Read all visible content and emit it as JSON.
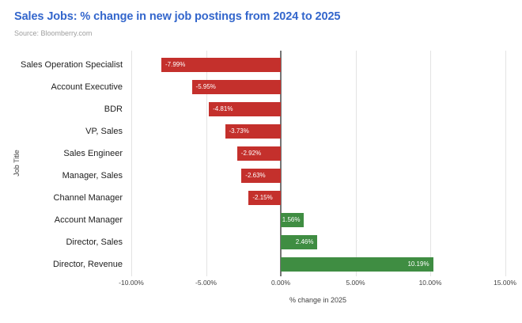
{
  "header": {
    "title": "Sales Jobs: % change in new job postings from 2024 to 2025",
    "source": "Source: Bloomberry.com"
  },
  "chart_data": {
    "type": "bar",
    "orientation": "horizontal",
    "title": "Sales Jobs: % change in new job postings from 2024 to 2025",
    "source": "Source: Bloomberry.com",
    "categories": [
      "Sales Operation Specialist",
      "Account Executive",
      "BDR",
      "VP, Sales",
      "Sales Engineer",
      "Manager, Sales",
      "Channel Manager",
      "Account Manager",
      "Director, Sales",
      "Director, Revenue"
    ],
    "values": [
      -7.99,
      -5.95,
      -4.81,
      -3.73,
      -2.92,
      -2.63,
      -2.15,
      1.56,
      2.46,
      10.19
    ],
    "value_labels": [
      "-7.99%",
      "-5.95%",
      "-4.81%",
      "-3.73%",
      "-2.92%",
      "-2.63%",
      "-2.15%",
      "1.56%",
      "2.46%",
      "10.19%"
    ],
    "xlabel": "% change in 2025",
    "ylabel": "Job Title",
    "x_ticks": [
      -10,
      -5,
      0,
      5,
      10,
      15
    ],
    "x_tick_labels": [
      "-10.00%",
      "-5.00%",
      "0.00%",
      "5.00%",
      "10.00%",
      "15.00%"
    ],
    "xlim": [
      -10.2,
      15.9
    ],
    "grid": true,
    "legend": "none",
    "colors": {
      "negative_bar": "#C4302C",
      "positive_bar": "#3F8D42",
      "grid_line": "#E3E3E3",
      "zero_line": "#757575",
      "title": "#3366CC",
      "source_text": "#9E9E9E",
      "axis_text": "#424242",
      "category_text": "#212121",
      "bar_label_text": "#FFFFFF"
    }
  }
}
